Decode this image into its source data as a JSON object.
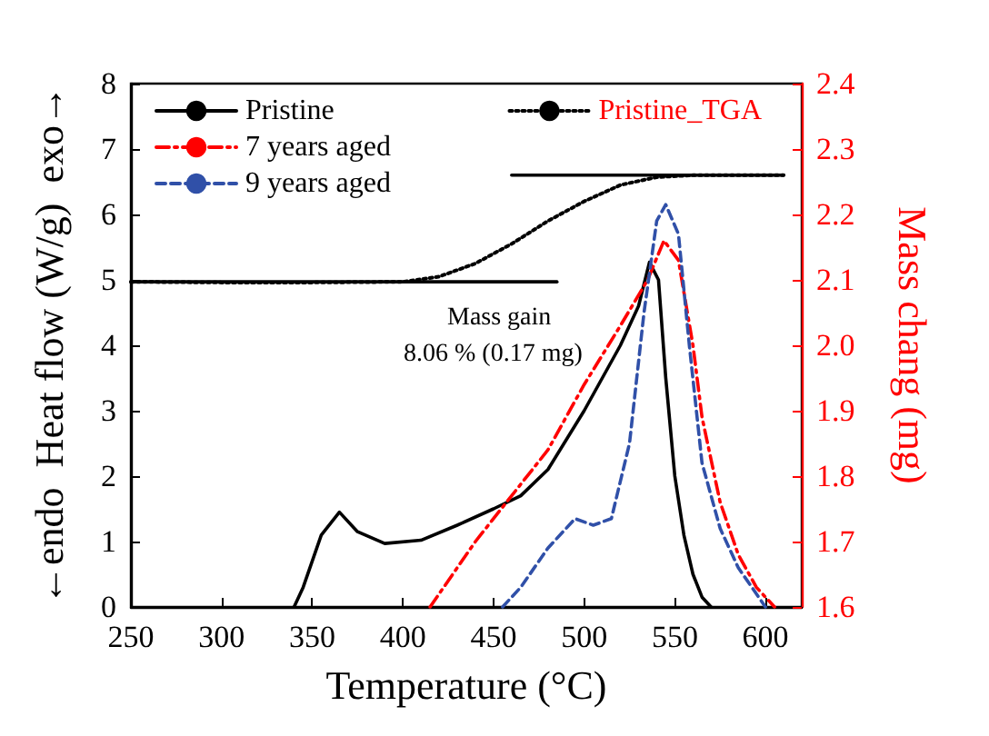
{
  "chart_data": {
    "type": "line",
    "xlabel": "Temperature (°C)",
    "ylabel": "←endo  Heat flow (W/g)  exo→",
    "y2label": "Mass chang (mg)",
    "xlim": [
      250,
      620
    ],
    "xticks": [
      250,
      300,
      350,
      400,
      450,
      500,
      550,
      600
    ],
    "ylim": [
      0,
      8
    ],
    "yticks": [
      0,
      1,
      2,
      3,
      4,
      5,
      6,
      7,
      8
    ],
    "y2lim": [
      1.6,
      2.4
    ],
    "y2ticks": [
      1.6,
      1.7,
      1.8,
      1.9,
      {
        "value": 2,
        "label": "2.0"
      },
      2.1,
      2.2,
      2.3,
      2.4
    ],
    "legend": "top left",
    "grid": false,
    "marker": "none",
    "annotations": [
      "Mass gain",
      "8.06 % (0.17 mg)"
    ],
    "series": [
      {
        "name": "Pristine",
        "color": "#000000",
        "line_style": "solid",
        "x": [
          340,
          345,
          355,
          365,
          375,
          390,
          410,
          430,
          450,
          465,
          480,
          500,
          520,
          530,
          536,
          541,
          545,
          550,
          555,
          560,
          565,
          570
        ],
        "values": [
          0,
          0.3,
          1.1,
          1.45,
          1.15,
          0.97,
          1.02,
          1.25,
          1.5,
          1.7,
          2.1,
          3.0,
          4.0,
          4.6,
          5.27,
          5.0,
          3.5,
          2.0,
          1.1,
          0.5,
          0.15,
          0
        ]
      },
      {
        "name": "7 years aged",
        "color": "#ff0000",
        "line_style": "dashdot",
        "x": [
          415,
          425,
          440,
          460,
          480,
          500,
          520,
          535,
          544,
          552,
          560,
          565,
          575,
          585,
          595,
          605
        ],
        "values": [
          0,
          0.4,
          1.0,
          1.7,
          2.4,
          3.4,
          4.3,
          5.0,
          5.6,
          5.3,
          4.0,
          2.9,
          1.6,
          0.8,
          0.3,
          0
        ]
      },
      {
        "name": "9 years aged",
        "color": "#3050a8",
        "line_style": "dashed",
        "x": [
          455,
          465,
          480,
          495,
          505,
          515,
          525,
          533,
          540,
          545,
          552,
          558,
          565,
          575,
          585,
          600
        ],
        "values": [
          0,
          0.3,
          0.9,
          1.35,
          1.25,
          1.35,
          2.5,
          4.5,
          5.9,
          6.15,
          5.7,
          4.0,
          2.2,
          1.2,
          0.6,
          0
        ]
      },
      {
        "name": "Pristine_TGA",
        "color": "#000000",
        "line_style": "dotted",
        "axis": "y2",
        "x": [
          250,
          300,
          350,
          400,
          420,
          440,
          460,
          480,
          500,
          520,
          540,
          560,
          580,
          610
        ],
        "values": [
          2.097,
          2.096,
          2.096,
          2.097,
          2.105,
          2.125,
          2.155,
          2.19,
          2.22,
          2.245,
          2.257,
          2.26,
          2.26,
          2.26
        ]
      },
      {
        "color": "#000000",
        "line_style": "solid",
        "axis": "y2",
        "x": [
          250,
          485
        ],
        "values": [
          2.097,
          2.097
        ]
      },
      {
        "color": "#000000",
        "line_style": "solid",
        "axis": "y2",
        "x": [
          460,
          610
        ],
        "values": [
          2.26,
          2.26
        ]
      }
    ]
  }
}
